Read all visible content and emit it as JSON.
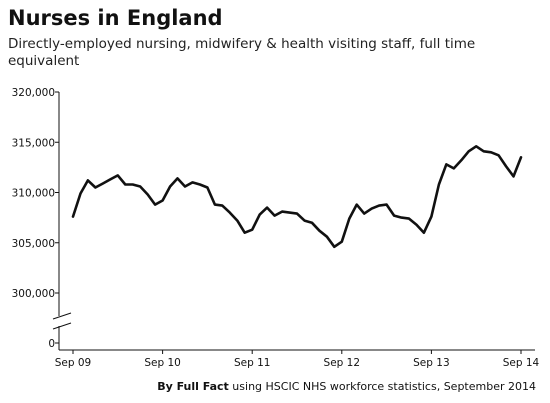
{
  "header": {
    "title": "Nurses in England",
    "subtitle": "Directly-employed nursing, midwifery & health visiting staff, full time equivalent"
  },
  "source": {
    "by": "By Full Fact",
    "text": " using HSCIC NHS workforce  statistics, September 2014"
  },
  "colors": {
    "line": "#111111",
    "axis": "#111111"
  },
  "chart_data": {
    "type": "line",
    "title": "Nurses in England",
    "subtitle": "Directly-employed nursing, midwifery & health visiting staff, full time equivalent",
    "xlabel": "",
    "ylabel": "",
    "grid": false,
    "y_axis_break": true,
    "y_ticks": [
      0,
      300000,
      305000,
      310000,
      315000,
      320000
    ],
    "y_tick_labels": [
      "0",
      "300,000",
      "305,000",
      "310,000",
      "315,000",
      "320,000"
    ],
    "ylim": [
      300000,
      320000
    ],
    "x_tick_labels": [
      "Sep 09",
      "Sep 10",
      "Sep 11",
      "Sep 12",
      "Sep 13",
      "Sep 14"
    ],
    "series": [
      {
        "name": "Nurses",
        "x": [
          "2009-09",
          "2009-10",
          "2009-11",
          "2009-12",
          "2010-01",
          "2010-02",
          "2010-03",
          "2010-04",
          "2010-05",
          "2010-06",
          "2010-07",
          "2010-08",
          "2010-09",
          "2010-10",
          "2010-11",
          "2010-12",
          "2011-01",
          "2011-02",
          "2011-03",
          "2011-04",
          "2011-05",
          "2011-06",
          "2011-07",
          "2011-08",
          "2011-09",
          "2011-10",
          "2011-11",
          "2011-12",
          "2012-01",
          "2012-02",
          "2012-03",
          "2012-04",
          "2012-05",
          "2012-06",
          "2012-07",
          "2012-08",
          "2012-09",
          "2012-10",
          "2012-11",
          "2012-12",
          "2013-01",
          "2013-02",
          "2013-03",
          "2013-04",
          "2013-05",
          "2013-06",
          "2013-07",
          "2013-08",
          "2013-09",
          "2013-10",
          "2013-11",
          "2013-12",
          "2014-01",
          "2014-02",
          "2014-03",
          "2014-04",
          "2014-05",
          "2014-06",
          "2014-07",
          "2014-08",
          "2014-09"
        ],
        "values": [
          307600,
          309900,
          311200,
          310500,
          310900,
          311300,
          311700,
          310800,
          310800,
          310600,
          309800,
          308800,
          309200,
          310600,
          311400,
          310600,
          311000,
          310800,
          310500,
          308800,
          308700,
          308000,
          307200,
          306000,
          306300,
          307800,
          308500,
          307700,
          308100,
          308000,
          307900,
          307200,
          307000,
          306200,
          305600,
          304600,
          305100,
          307400,
          308800,
          307900,
          308400,
          308700,
          308800,
          307700,
          307500,
          307400,
          306800,
          306000,
          307600,
          310800,
          312800,
          312400,
          313200,
          314100,
          314600,
          314100,
          314000,
          313700,
          312600,
          311600,
          313500
        ]
      }
    ]
  }
}
